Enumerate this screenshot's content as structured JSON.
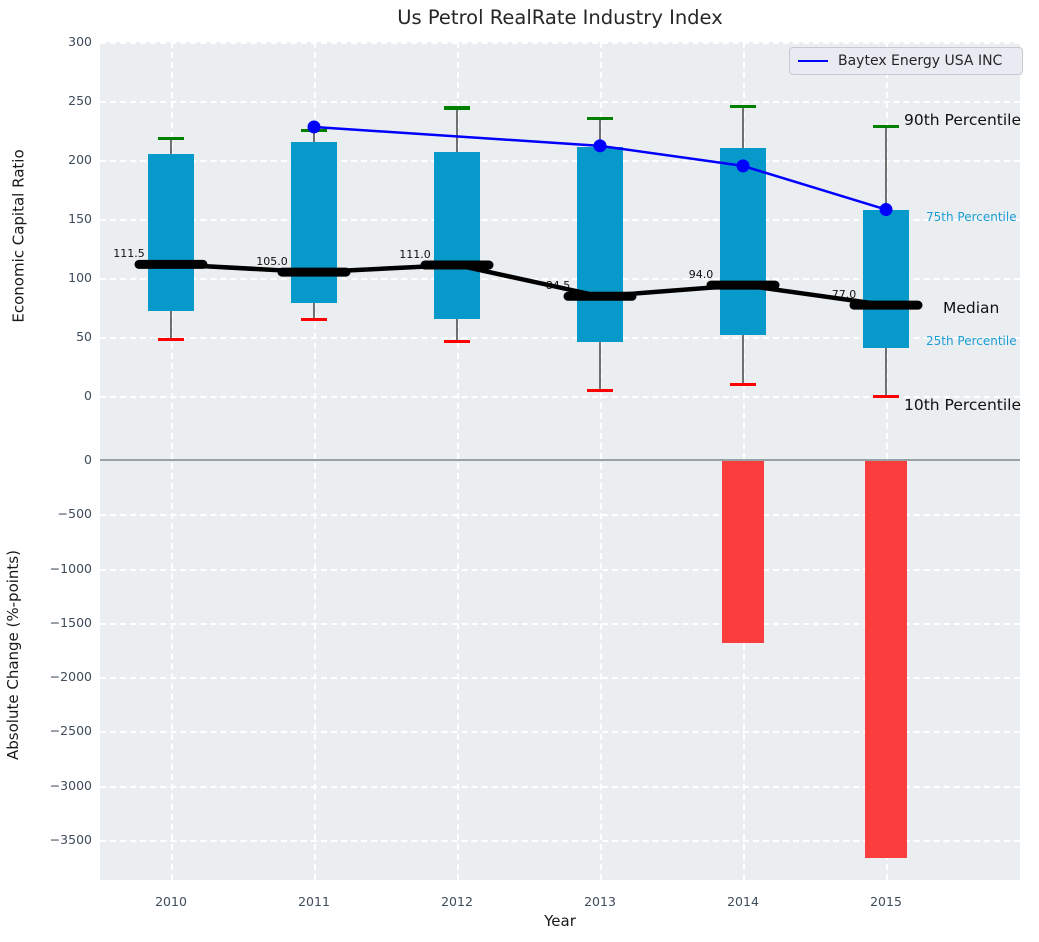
{
  "title": "Us Petrol RealRate Industry Index",
  "xlabel": "Year",
  "legend": {
    "label": "Baytex Energy USA INC"
  },
  "top_panel": {
    "ylabel": "Economic Capital Ratio",
    "yticks": [
      300,
      250,
      200,
      150,
      100,
      50,
      0
    ],
    "ylim": [
      -29,
      300
    ],
    "grid": "white-dashed"
  },
  "bottom_panel": {
    "ylabel": "Absolute Change (%-points)",
    "yticks": [
      0,
      -500,
      -1000,
      -1500,
      -2000,
      -2500,
      -3000,
      -3500
    ],
    "ylim": [
      -3870,
      275
    ],
    "grid": "white-dashed"
  },
  "colors": {
    "box": "#0899cb",
    "bar_negative": "#fa3d3d",
    "p90_cap": "#008000",
    "p10_cap": "#ff0000",
    "company_line": "#0000ff",
    "median": "#000000",
    "panel_bg": "#ebeef0",
    "tick_label": "#3e4c5c",
    "annotation_accent": "#1b9ed6",
    "whisker": "#6f6f6f"
  },
  "chart_data": {
    "type": [
      "box-whisker",
      "line",
      "bar"
    ],
    "categories": [
      "2010",
      "2011",
      "2012",
      "2013",
      "2014",
      "2015"
    ],
    "boxplots": [
      {
        "year": "2010",
        "p10": 48,
        "p25": 72,
        "median": 111.5,
        "p75": 205,
        "p90": 218
      },
      {
        "year": "2011",
        "p10": 65,
        "p25": 79,
        "median": 105.0,
        "p75": 215,
        "p90": 225
      },
      {
        "year": "2012",
        "p10": 46,
        "p25": 65,
        "median": 111.0,
        "p75": 207,
        "p90": 244
      },
      {
        "year": "2013",
        "p10": 5,
        "p25": 46,
        "median": 84.5,
        "p75": 211,
        "p90": 235
      },
      {
        "year": "2014",
        "p10": 10,
        "p25": 52,
        "median": 94.0,
        "p75": 210,
        "p90": 245
      },
      {
        "year": "2015",
        "p10": 0,
        "p25": 41,
        "median": 77.0,
        "p75": 158,
        "p90": 228
      }
    ],
    "median_line": {
      "name": "Median",
      "values": [
        111.5,
        105.0,
        111.0,
        84.5,
        94.0,
        77.0
      ]
    },
    "median_labels": [
      "111.5",
      "105.0",
      "111.0",
      "84.5",
      "94.0",
      "77.0"
    ],
    "company_line": {
      "name": "Baytex Energy USA INC",
      "points": [
        {
          "year": "2011",
          "value": 228
        },
        {
          "year": "2013",
          "value": 212
        },
        {
          "year": "2014",
          "value": 195
        },
        {
          "year": "2015",
          "value": 158
        }
      ]
    },
    "change_bars": {
      "name": "Absolute Change (%-points)",
      "values": [
        null,
        null,
        null,
        null,
        -1690,
        -3670
      ]
    },
    "annotations": [
      {
        "text": "90th Percentile",
        "style": "large"
      },
      {
        "text": "75th Percentile",
        "style": "small"
      },
      {
        "text": "Median",
        "style": "large"
      },
      {
        "text": "25th Percentile",
        "style": "small"
      },
      {
        "text": "10th Percentile",
        "style": "large"
      }
    ]
  }
}
